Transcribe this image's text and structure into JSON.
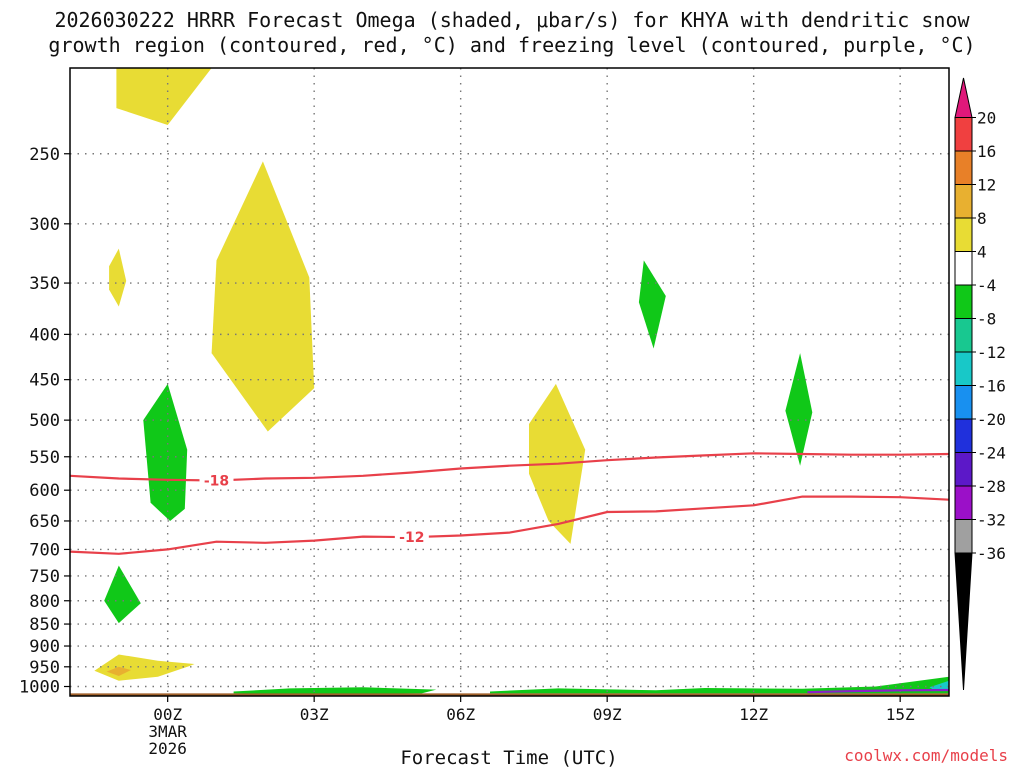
{
  "title_line1": "2026030222 HRRR Forecast Omega (shaded, μbar/s) for KHYA with dendritic snow",
  "title_line2": "growth region (contoured, red, °C) and freezing level (contoured, purple, °C)",
  "credit": "coolwx.com/models",
  "chart_data": {
    "type": "time-height contour",
    "xlabel": "Forecast Time (UTC)",
    "x_range_hours": [
      -2,
      16
    ],
    "x_ticks": [
      {
        "hour": 0,
        "label": "00Z",
        "sublabel1": "3MAR",
        "sublabel2": "2026"
      },
      {
        "hour": 3,
        "label": "03Z"
      },
      {
        "hour": 6,
        "label": "06Z"
      },
      {
        "hour": 9,
        "label": "09Z"
      },
      {
        "hour": 12,
        "label": "12Z"
      },
      {
        "hour": 15,
        "label": "15Z"
      }
    ],
    "y_pressure_range_mb": [
      1025,
      200
    ],
    "y_ticks": [
      250,
      300,
      350,
      400,
      450,
      500,
      550,
      600,
      650,
      700,
      750,
      800,
      850,
      900,
      950,
      1000
    ],
    "colorbar": {
      "levels": [
        -36,
        -32,
        -28,
        -24,
        -20,
        -16,
        -12,
        -8,
        -4,
        4,
        8,
        12,
        16,
        20
      ],
      "level_labels": [
        "-36",
        "-32",
        "-28",
        "-24",
        "-20",
        "-16",
        "-12",
        "-8",
        "-4",
        "4",
        "8",
        "12",
        "16",
        "20"
      ],
      "colors_low_to_high": [
        "#000000",
        "#a0a0a0",
        "#9b10c8",
        "#5c18c8",
        "#2030dc",
        "#1890f0",
        "#18c8c8",
        "#18c890",
        "#10c818",
        "#ffffff",
        "#e8dc34",
        "#e8b030",
        "#e88028",
        "#f04040",
        "#e0187a"
      ]
    },
    "shaded_regions": [
      {
        "color": "#e8dc34",
        "points": [
          [
            -1.05,
            200
          ],
          [
            0.9,
            200
          ],
          [
            0,
            232
          ],
          [
            -1.05,
            222
          ]
        ]
      },
      {
        "color": "#e8dc34",
        "points": [
          [
            -1.2,
            335
          ],
          [
            -1.0,
            320
          ],
          [
            -0.85,
            348
          ],
          [
            -1.0,
            372
          ],
          [
            -1.2,
            356
          ]
        ]
      },
      {
        "color": "#e8dc34",
        "points": [
          [
            1.95,
            255
          ],
          [
            2.9,
            345
          ],
          [
            3.0,
            460
          ],
          [
            2.05,
            515
          ],
          [
            0.9,
            420
          ],
          [
            1.0,
            330
          ]
        ]
      },
      {
        "color": "#10c818",
        "points": [
          [
            0.0,
            455
          ],
          [
            0.4,
            540
          ],
          [
            0.35,
            630
          ],
          [
            0.05,
            650
          ],
          [
            -0.35,
            620
          ],
          [
            -0.5,
            500
          ]
        ]
      },
      {
        "color": "#10c818",
        "points": [
          [
            -1.0,
            730
          ],
          [
            -0.55,
            805
          ],
          [
            -1.0,
            848
          ],
          [
            -1.3,
            800
          ]
        ]
      },
      {
        "color": "#e8dc34",
        "points": [
          [
            -1.0,
            920
          ],
          [
            -0.2,
            935
          ],
          [
            0.55,
            943
          ],
          [
            0.45,
            948
          ],
          [
            -0.2,
            975
          ],
          [
            -1.0,
            985
          ],
          [
            -1.5,
            960
          ]
        ]
      },
      {
        "color": "#e8b030",
        "points": [
          [
            -1.0,
            950
          ],
          [
            -0.75,
            958
          ],
          [
            -1.0,
            973
          ],
          [
            -1.25,
            962
          ]
        ]
      },
      {
        "color": "#e8dc34",
        "points": [
          [
            7.95,
            455
          ],
          [
            8.55,
            540
          ],
          [
            8.25,
            690
          ],
          [
            7.8,
            650
          ],
          [
            7.4,
            575
          ],
          [
            7.4,
            505
          ]
        ]
      },
      {
        "color": "#10c818",
        "points": [
          [
            9.75,
            330
          ],
          [
            10.2,
            362
          ],
          [
            9.95,
            415
          ],
          [
            9.65,
            368
          ]
        ]
      },
      {
        "color": "#10c818",
        "points": [
          [
            12.95,
            420
          ],
          [
            13.2,
            490
          ],
          [
            12.95,
            563
          ],
          [
            12.65,
            488
          ]
        ]
      },
      {
        "color": "#10c818",
        "points": [
          [
            1.35,
            1013
          ],
          [
            2.5,
            1005
          ],
          [
            4.0,
            1002
          ],
          [
            5.5,
            1008
          ],
          [
            5.2,
            1018
          ],
          [
            3.0,
            1020
          ],
          [
            1.35,
            1018
          ]
        ]
      },
      {
        "color": "#10c818",
        "points": [
          [
            6.6,
            1013
          ],
          [
            8.0,
            1005
          ],
          [
            10.0,
            1010
          ],
          [
            11.0,
            1004
          ],
          [
            13.0,
            1006
          ],
          [
            14.5,
            1000
          ],
          [
            16.0,
            975
          ],
          [
            16.0,
            1018
          ],
          [
            6.6,
            1018
          ]
        ]
      },
      {
        "color": "#18c8c8",
        "points": [
          [
            15.6,
            1002
          ],
          [
            16.0,
            985
          ],
          [
            16.0,
            1010
          ],
          [
            15.7,
            1010
          ]
        ]
      }
    ],
    "ground_band": {
      "top_mb": 1018,
      "bottom_mb": 1025,
      "color": "#a0602a"
    },
    "contours": [
      {
        "label": "-18",
        "color": "#e8404a",
        "label_hour": 1.0,
        "points": [
          [
            -2,
            578
          ],
          [
            -1,
            582
          ],
          [
            0,
            584
          ],
          [
            1,
            585
          ],
          [
            2,
            582
          ],
          [
            3,
            581
          ],
          [
            4,
            578
          ],
          [
            5,
            573
          ],
          [
            6,
            567
          ],
          [
            7,
            563
          ],
          [
            8,
            560
          ],
          [
            9,
            555
          ],
          [
            10,
            551
          ],
          [
            11,
            548
          ],
          [
            12,
            545
          ],
          [
            13,
            546
          ],
          [
            14,
            547
          ],
          [
            15,
            547
          ],
          [
            16,
            546
          ]
        ]
      },
      {
        "label": "-12",
        "color": "#e8404a",
        "label_hour": 5.0,
        "points": [
          [
            -2,
            704
          ],
          [
            -1,
            708
          ],
          [
            0,
            700
          ],
          [
            1,
            686
          ],
          [
            2,
            688
          ],
          [
            3,
            684
          ],
          [
            4,
            677
          ],
          [
            5,
            678
          ],
          [
            6,
            675
          ],
          [
            7,
            670
          ],
          [
            8,
            655
          ],
          [
            9,
            635
          ],
          [
            10,
            634
          ],
          [
            11,
            629
          ],
          [
            12,
            624
          ],
          [
            13,
            610
          ],
          [
            14,
            610
          ],
          [
            15,
            611
          ],
          [
            16,
            615
          ]
        ]
      },
      {
        "label": "",
        "color": "#8a20c8",
        "label_hour": null,
        "points": [
          [
            13.1,
            1015
          ],
          [
            14,
            1012
          ],
          [
            15,
            1010
          ],
          [
            16,
            1009
          ]
        ]
      }
    ]
  }
}
